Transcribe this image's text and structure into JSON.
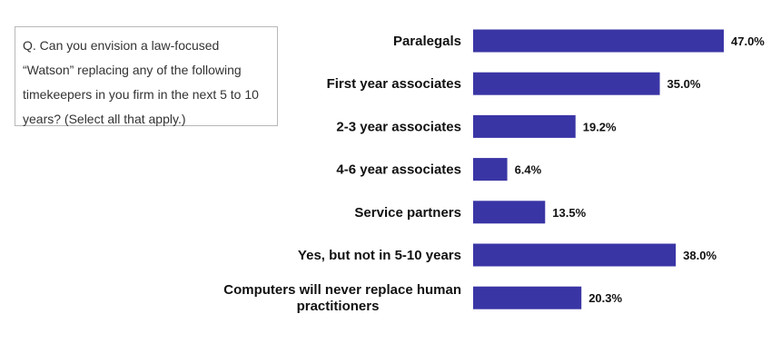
{
  "question": {
    "lines": [
      "Q. Can you envision a law-focused",
      "“Watson” replacing any of the following",
      "timekeepers in you firm in the next 5 to 10",
      "years? (Select all that apply.)"
    ]
  },
  "chart_data": {
    "type": "bar",
    "orientation": "horizontal",
    "title": "",
    "xlabel": "",
    "ylabel": "",
    "bar_color": "#3a35a5",
    "categories": [
      "Paralegals",
      "First year associates",
      "2-3 year associates",
      "4-6 year associates",
      "Service partners",
      "Yes, but not in 5-10 years",
      "Computers will never replace human practitioners"
    ],
    "category_label_lines": [
      [
        "Paralegals"
      ],
      [
        "First year associates"
      ],
      [
        "2-3 year associates"
      ],
      [
        "4-6 year associates"
      ],
      [
        "Service partners"
      ],
      [
        "Yes, but not in 5-10 years"
      ],
      [
        "Computers will never replace human",
        "practitioners"
      ]
    ],
    "values": [
      47.0,
      35.0,
      19.2,
      6.4,
      13.5,
      38.0,
      20.3
    ],
    "value_labels": [
      "47.0%",
      "35.0%",
      "19.2%",
      "6.4%",
      "13.5%",
      "38.0%",
      "20.3%"
    ],
    "xlim": [
      0,
      47.0
    ],
    "grid": false,
    "legend": "none"
  }
}
